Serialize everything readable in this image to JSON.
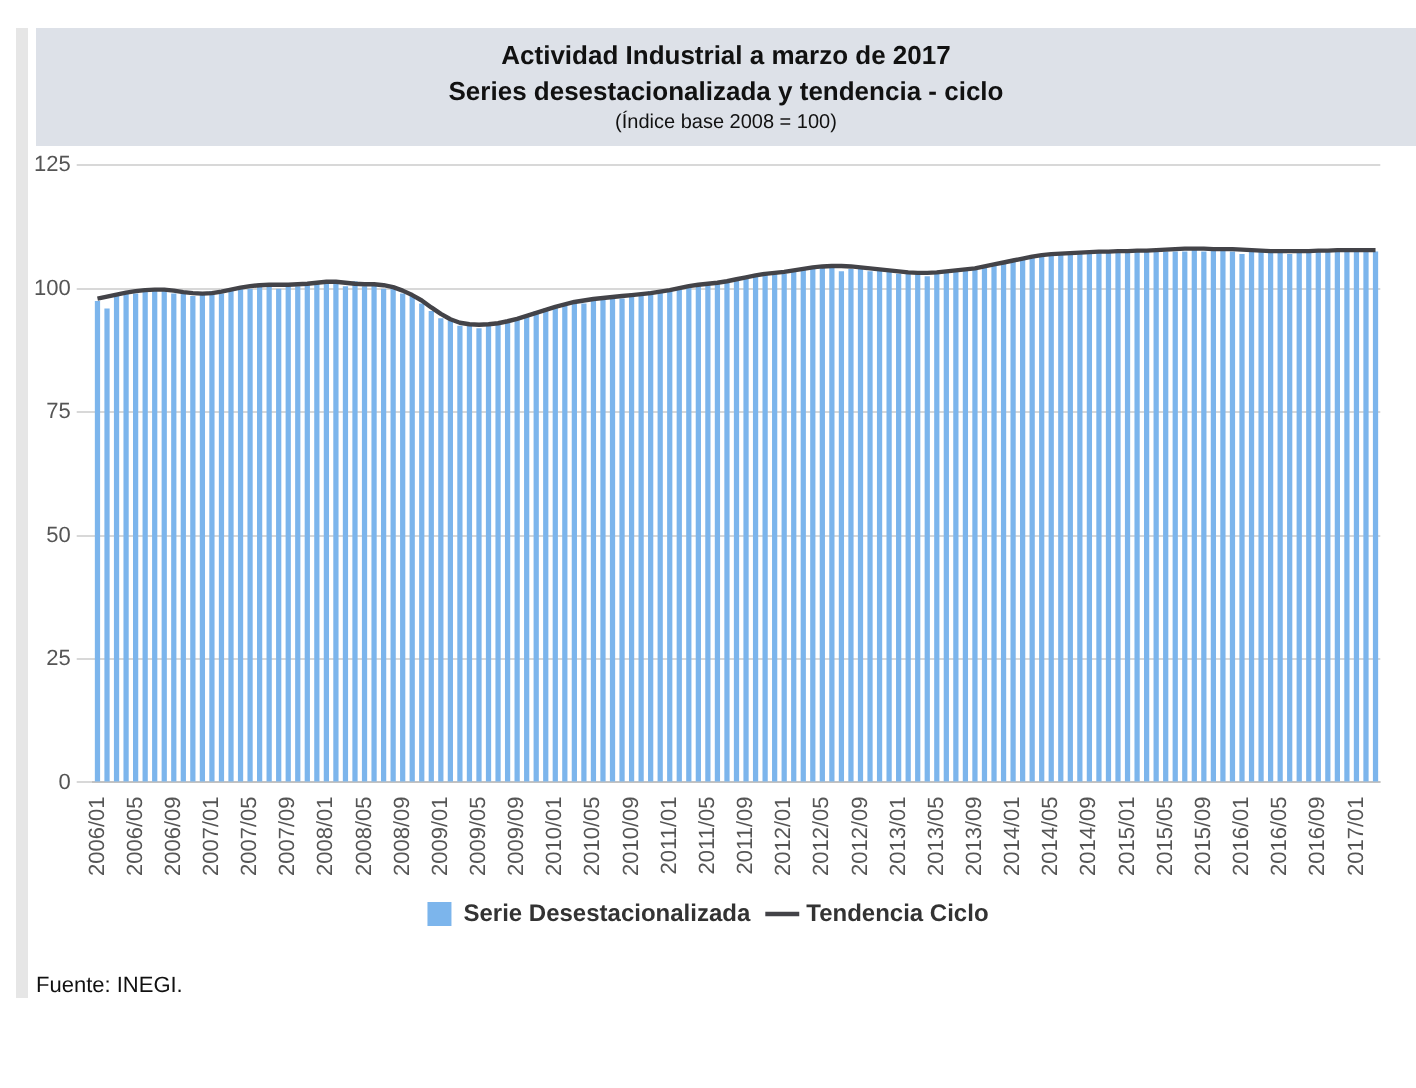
{
  "chart_data": {
    "type": "bar",
    "title": "Actividad Industrial a marzo de 2017",
    "subtitle": "Series desestacionalizada y tendencia - ciclo",
    "annotations": [
      "(Índice base 2008 = 100)",
      "Fuente: INEGI."
    ],
    "categories": [
      "2006/01",
      null,
      null,
      null,
      "2006/05",
      null,
      null,
      null,
      "2006/09",
      null,
      null,
      null,
      "2007/01",
      null,
      null,
      null,
      "2007/05",
      null,
      null,
      null,
      "2007/09",
      null,
      null,
      null,
      "2008/01",
      null,
      null,
      null,
      "2008/05",
      null,
      null,
      null,
      "2008/09",
      null,
      null,
      null,
      "2009/01",
      null,
      null,
      null,
      "2009/05",
      null,
      null,
      null,
      "2009/09",
      null,
      null,
      null,
      "2010/01",
      null,
      null,
      null,
      "2010/05",
      null,
      null,
      null,
      "2010/09",
      null,
      null,
      null,
      "2011/01",
      null,
      null,
      null,
      "2011/05",
      null,
      null,
      null,
      "2011/09",
      null,
      null,
      null,
      "2012/01",
      null,
      null,
      null,
      "2012/05",
      null,
      null,
      null,
      "2012/09",
      null,
      null,
      null,
      "2013/01",
      null,
      null,
      null,
      "2013/05",
      null,
      null,
      null,
      "2013/09",
      null,
      null,
      null,
      "2014/01",
      null,
      null,
      null,
      "2014/05",
      null,
      null,
      null,
      "2014/09",
      null,
      null,
      null,
      "2015/01",
      null,
      null,
      null,
      "2015/05",
      null,
      null,
      null,
      "2015/09",
      null,
      null,
      null,
      "2016/01",
      null,
      null,
      null,
      "2016/05",
      null,
      null,
      null,
      "2016/09",
      null,
      null,
      null,
      "2017/01",
      null,
      null
    ],
    "series": [
      {
        "name": "Serie Desestacionalizada",
        "color": "#7cb5ec",
        "values": [
          97.5,
          96.0,
          98.5,
          99.5,
          99.0,
          100.0,
          99.5,
          100.0,
          99.0,
          99.5,
          98.5,
          99.0,
          99.5,
          99.0,
          100.0,
          100.5,
          100.0,
          101.0,
          100.5,
          100.0,
          101.0,
          100.5,
          101.0,
          101.0,
          101.5,
          101.0,
          100.5,
          101.5,
          100.5,
          101.0,
          100.0,
          100.5,
          99.0,
          98.5,
          97.0,
          95.5,
          94.0,
          93.5,
          92.5,
          92.5,
          92.0,
          92.5,
          93.0,
          93.5,
          94.0,
          94.5,
          95.5,
          96.0,
          96.5,
          96.5,
          97.5,
          97.0,
          98.0,
          98.0,
          98.5,
          98.0,
          99.0,
          99.0,
          99.5,
          99.5,
          99.5,
          100.0,
          100.5,
          100.5,
          101.0,
          101.0,
          101.5,
          102.0,
          102.0,
          102.5,
          103.0,
          103.0,
          103.0,
          103.5,
          104.0,
          104.0,
          104.5,
          104.5,
          103.5,
          104.0,
          104.0,
          103.5,
          104.0,
          103.5,
          103.0,
          103.5,
          103.0,
          102.5,
          103.0,
          103.5,
          103.5,
          104.0,
          104.0,
          104.5,
          105.0,
          105.0,
          105.5,
          106.0,
          106.5,
          106.5,
          107.0,
          107.0,
          107.0,
          107.5,
          107.0,
          107.5,
          107.5,
          107.5,
          107.5,
          107.5,
          108.0,
          107.5,
          107.5,
          107.5,
          107.5,
          108.0,
          107.5,
          108.0,
          108.0,
          107.5,
          107.0,
          108.0,
          107.5,
          107.5,
          107.5,
          107.0,
          107.5,
          107.5,
          107.5,
          107.5,
          107.5,
          107.5,
          108.0,
          107.5,
          107.5
        ]
      },
      {
        "name": "Tendencia Ciclo",
        "type": "line",
        "color": "#434348",
        "values": [
          98.0,
          98.4,
          98.8,
          99.2,
          99.5,
          99.7,
          99.8,
          99.8,
          99.6,
          99.3,
          99.1,
          99.0,
          99.1,
          99.4,
          99.8,
          100.2,
          100.5,
          100.7,
          100.8,
          100.8,
          100.8,
          100.9,
          101.0,
          101.2,
          101.4,
          101.4,
          101.2,
          101.0,
          100.9,
          100.9,
          100.7,
          100.3,
          99.6,
          98.7,
          97.6,
          96.2,
          94.9,
          93.8,
          93.1,
          92.8,
          92.7,
          92.8,
          93.0,
          93.4,
          93.9,
          94.5,
          95.1,
          95.7,
          96.3,
          96.8,
          97.3,
          97.6,
          97.9,
          98.1,
          98.3,
          98.5,
          98.7,
          98.9,
          99.1,
          99.4,
          99.7,
          100.1,
          100.5,
          100.8,
          101.0,
          101.2,
          101.5,
          101.9,
          102.3,
          102.7,
          103.0,
          103.2,
          103.4,
          103.7,
          104.0,
          104.3,
          104.5,
          104.6,
          104.6,
          104.5,
          104.3,
          104.1,
          103.9,
          103.7,
          103.5,
          103.3,
          103.2,
          103.2,
          103.3,
          103.5,
          103.7,
          103.9,
          104.1,
          104.5,
          104.9,
          105.3,
          105.7,
          106.1,
          106.5,
          106.8,
          107.0,
          107.1,
          107.2,
          107.3,
          107.4,
          107.5,
          107.5,
          107.6,
          107.6,
          107.7,
          107.7,
          107.8,
          107.9,
          108.0,
          108.1,
          108.1,
          108.1,
          108.0,
          108.0,
          108.0,
          107.9,
          107.8,
          107.7,
          107.6,
          107.6,
          107.6,
          107.6,
          107.6,
          107.7,
          107.7,
          107.8,
          107.8,
          107.8,
          107.8,
          107.8
        ]
      }
    ],
    "ylim": [
      0,
      125
    ],
    "yticks": [
      0,
      25,
      50,
      75,
      100,
      125
    ],
    "grid": "y",
    "legend": "bottom",
    "marker": "none",
    "line_style": "solid"
  }
}
